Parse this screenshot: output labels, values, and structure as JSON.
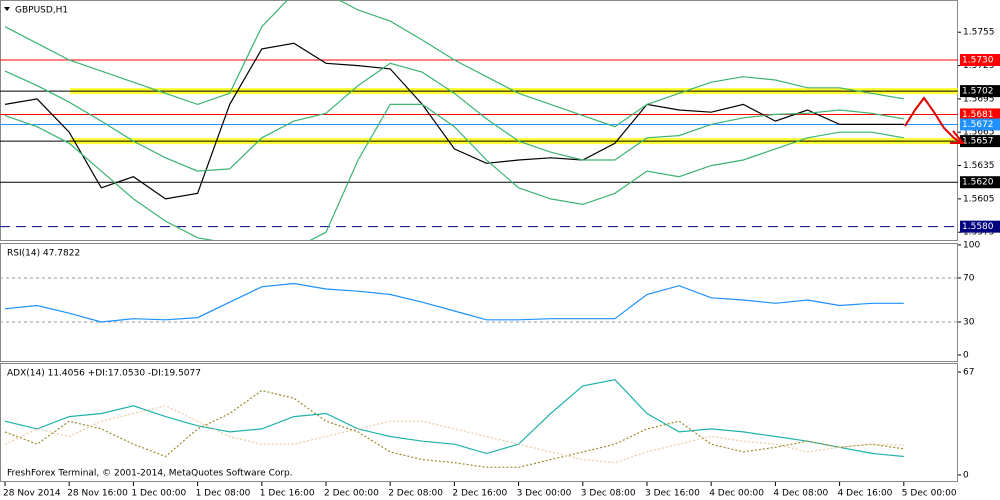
{
  "chart_data": [
    {
      "type": "line",
      "title": "GBPUSD,H1",
      "categories": [
        "28 Nov 2014",
        null,
        "28 Nov 16:00",
        null,
        "1 Dec 00:00",
        null,
        "1 Dec 08:00",
        null,
        "1 Dec 16:00",
        null,
        "2 Dec 00:00",
        null,
        "2 Dec 08:00",
        null,
        "2 Dec 16:00",
        null,
        "3 Dec 00:00",
        null,
        "3 Dec 08:00",
        null,
        "3 Dec 16:00",
        null,
        "4 Dec 00:00",
        null,
        "4 Dec 08:00",
        null,
        "4 Dec 16:00",
        null,
        "5 Dec 00:00"
      ],
      "series": [
        {
          "color": "#000000",
          "values": [
            1.569,
            1.5695,
            1.5665,
            1.5615,
            1.5625,
            1.5605,
            1.561,
            1.569,
            1.574,
            1.5745,
            1.5727,
            1.5725,
            1.5722,
            1.569,
            1.565,
            1.5637,
            1.564,
            1.5642,
            1.564,
            1.5655,
            1.569,
            1.5685,
            1.5683,
            1.569,
            1.5675,
            1.5685,
            1.5672,
            1.5672,
            1.5672
          ]
        },
        {
          "color": "#3cb371",
          "values": [
            1.576,
            1.5745,
            1.573,
            1.572,
            1.571,
            1.57,
            1.569,
            1.57,
            1.576,
            1.579,
            1.579,
            1.5775,
            1.5765,
            1.5748,
            1.573,
            1.5715,
            1.57,
            1.569,
            1.568,
            1.567,
            1.569,
            1.57,
            1.571,
            1.5715,
            1.5712,
            1.5705,
            1.5705,
            1.57,
            1.5695
          ]
        },
        {
          "color": "#3cb371",
          "values": [
            1.572,
            1.5707,
            1.5692,
            1.5675,
            1.5657,
            1.5642,
            1.563,
            1.5632,
            1.566,
            1.5675,
            1.5682,
            1.5707,
            1.5727,
            1.5719,
            1.57,
            1.5677,
            1.5657,
            1.5647,
            1.564,
            1.564,
            1.566,
            1.5662,
            1.5672,
            1.5678,
            1.5681,
            1.5682,
            1.5685,
            1.5682,
            1.5677
          ]
        },
        {
          "color": "#3cb371",
          "values": [
            1.568,
            1.567,
            1.5655,
            1.563,
            1.5605,
            1.5585,
            1.557,
            1.5565,
            1.556,
            1.556,
            1.5575,
            1.564,
            1.569,
            1.569,
            1.567,
            1.564,
            1.5615,
            1.5605,
            1.56,
            1.561,
            1.563,
            1.5625,
            1.5635,
            1.564,
            1.565,
            1.566,
            1.5665,
            1.5665,
            1.566
          ]
        }
      ],
      "ylim": [
        1.5568,
        1.5784
      ],
      "yticks": [
        1.5575,
        1.5605,
        1.5635,
        1.5665,
        1.5695,
        1.5725,
        1.5755
      ],
      "levels": [
        {
          "value": 1.573,
          "label": "1.5730",
          "color": "#ff0000",
          "highlight": false,
          "dash": false
        },
        {
          "value": 1.5702,
          "label": "1.5702",
          "color": "#000000",
          "highlight": true,
          "dash": false
        },
        {
          "value": 1.5681,
          "label": "1.5681",
          "color": "#ff0000",
          "highlight": false,
          "dash": false
        },
        {
          "value": 1.5672,
          "label": "1.5672",
          "color": "#1e90ff",
          "highlight": false,
          "dash": false
        },
        {
          "value": 1.5657,
          "label": "1.5657",
          "color": "#000000",
          "highlight": true,
          "dash": false
        },
        {
          "value": 1.562,
          "label": "1.5620",
          "color": "#000000",
          "highlight": false,
          "dash": false
        },
        {
          "value": 1.558,
          "label": "1.5580",
          "color": "#000080",
          "highlight": false,
          "dash": true
        }
      ]
    },
    {
      "type": "line",
      "title": "RSI(14) 47.7822",
      "series": [
        {
          "color": "#1e90ff",
          "values": [
            42,
            45,
            38,
            30,
            33,
            32,
            34,
            48,
            62,
            65,
            60,
            58,
            55,
            48,
            40,
            32,
            32,
            33,
            33,
            33,
            55,
            63,
            52,
            50,
            47,
            50,
            45,
            47,
            47
          ]
        }
      ],
      "ylim": [
        -6.4,
        101.8
      ],
      "yticks": [
        0,
        30,
        70,
        100
      ],
      "dashed_grid": [
        30,
        70
      ]
    },
    {
      "type": "line",
      "title": "ADX(14) 11.4056 +DI:17.0530 -DI:19.5077",
      "series": [
        {
          "color": "#20b2aa",
          "dash": false,
          "values": [
            35,
            30,
            38,
            40,
            45,
            38,
            32,
            28,
            30,
            38,
            40,
            30,
            25,
            22,
            20,
            14,
            20,
            40,
            58,
            62,
            40,
            28,
            30,
            28,
            25,
            22,
            18,
            14,
            12
          ]
        },
        {
          "color": "#9a8a2a",
          "dash": true,
          "values": [
            28,
            20,
            35,
            30,
            20,
            12,
            30,
            40,
            55,
            50,
            35,
            28,
            15,
            10,
            8,
            5,
            5,
            10,
            15,
            20,
            30,
            35,
            20,
            15,
            18,
            22,
            18,
            20,
            17
          ]
        },
        {
          "color": "#e9c9a0",
          "dash": true,
          "values": [
            20,
            30,
            25,
            35,
            40,
            45,
            35,
            25,
            20,
            20,
            25,
            30,
            35,
            35,
            30,
            25,
            20,
            15,
            10,
            8,
            15,
            20,
            25,
            22,
            20,
            15,
            18,
            20,
            19.5
          ]
        }
      ],
      "ylim": [
        -4.6,
        72.9
      ],
      "yticks": [
        0,
        67
      ]
    }
  ],
  "footer": "FreshForex Terminal, © 2001-2014, MetaQuotes Software Corp."
}
